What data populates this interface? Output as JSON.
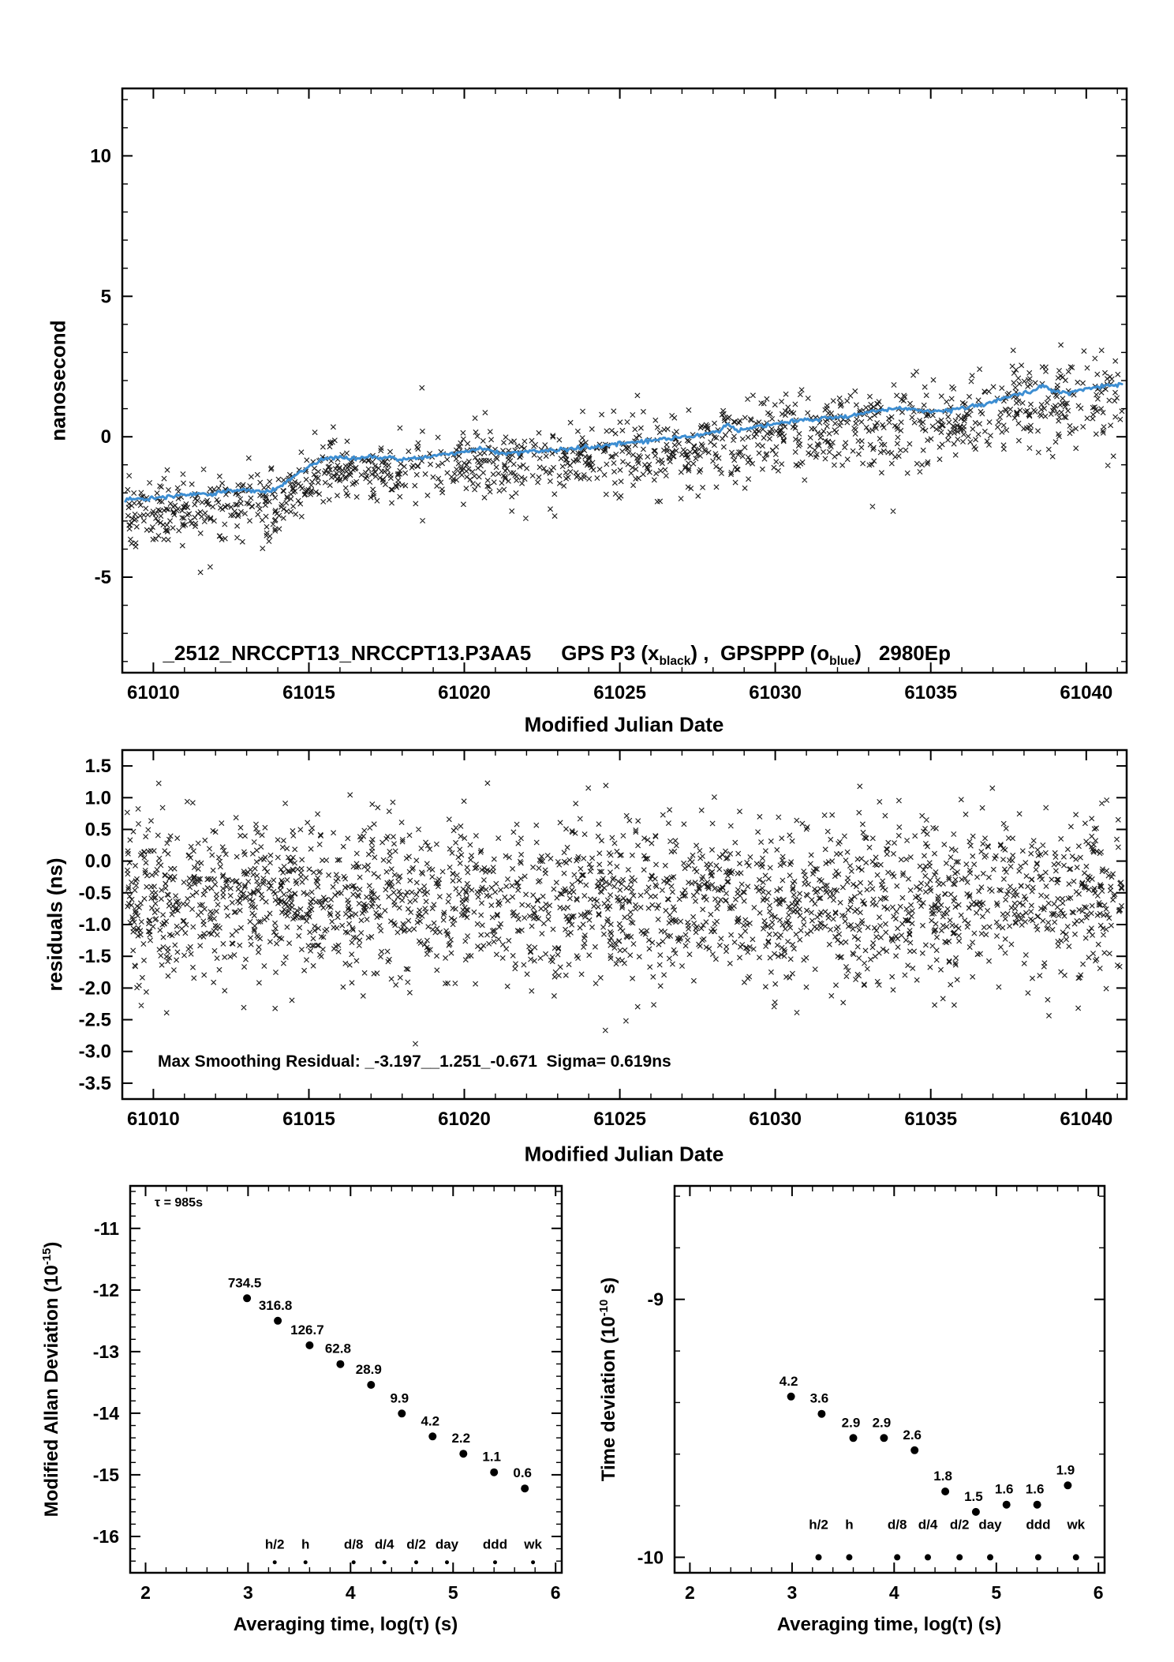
{
  "colors": {
    "black": "#1a1a1a",
    "blue": "#3d8ed2",
    "red": "#e00000"
  },
  "chart_data": [
    {
      "id": "phase-comparison",
      "type": "scatter",
      "xlabel": "Modified Julian Date",
      "ylabel": "nanosecond",
      "legend": {
        "run": "_2512_NRCCPT13_NRCCPT13.P3AA5",
        "gps_pre": "GPS P3 (x",
        "gps_sub": "black",
        "mid": ") ,  GPSPPP (o",
        "ppp_sub": "blue",
        "post": ")",
        "code": "2980Ep"
      },
      "xlim": [
        61009.0,
        61041.3
      ],
      "ylim": [
        -8.4,
        12.4
      ],
      "xticks": [
        61010,
        61015,
        61020,
        61025,
        61030,
        61035,
        61040
      ],
      "xtick_labels": [
        "61010",
        "61015",
        "61020",
        "61025",
        "61030",
        "61035",
        "61040"
      ],
      "yticks": [
        10,
        5,
        0,
        -5
      ],
      "ytick_labels": [
        "10",
        "5",
        "0",
        "-5"
      ],
      "series": [
        {
          "name": "GPS P3 (x black)",
          "marker": "x",
          "color_key": "black",
          "n": 1400,
          "seed": 20231,
          "mean_offset": -0.45,
          "sigma_base": 0.55,
          "sigma_slope": 0.008,
          "outlier_rate": 0.025,
          "clip": [
            -4.9,
            3.4
          ]
        },
        {
          "name": "GPSPPP (o blue)",
          "marker": "o",
          "color_key": "blue",
          "trend_anchors": [
            [
              61009.0,
              -2.25
            ],
            [
              61010,
              -2.2
            ],
            [
              61011,
              -2.05
            ],
            [
              61012,
              -2.0
            ],
            [
              61013,
              -1.9
            ],
            [
              61013.8,
              -1.95
            ],
            [
              61014.3,
              -1.6
            ],
            [
              61015,
              -1.05
            ],
            [
              61015.4,
              -0.8
            ],
            [
              61016,
              -0.72
            ],
            [
              61016.5,
              -0.78
            ],
            [
              61017,
              -0.7
            ],
            [
              61017.6,
              -0.78
            ],
            [
              61018.2,
              -0.8
            ],
            [
              61019,
              -0.68
            ],
            [
              61019.6,
              -0.58
            ],
            [
              61020,
              -0.52
            ],
            [
              61020.5,
              -0.42
            ],
            [
              61020.8,
              -0.5
            ],
            [
              61021.2,
              -0.62
            ],
            [
              61021.6,
              -0.58
            ],
            [
              61022,
              -0.52
            ],
            [
              61022.6,
              -0.5
            ],
            [
              61023.2,
              -0.45
            ],
            [
              61024,
              -0.38
            ],
            [
              61024.6,
              -0.3
            ],
            [
              61025.2,
              -0.22
            ],
            [
              61026,
              -0.12
            ],
            [
              61026.6,
              -0.05
            ],
            [
              61027.2,
              0.02
            ],
            [
              61027.8,
              0.12
            ],
            [
              61028.2,
              0.18
            ],
            [
              61028.45,
              0.5
            ],
            [
              61028.7,
              0.25
            ],
            [
              61029.2,
              0.3
            ],
            [
              61029.8,
              0.42
            ],
            [
              61030.4,
              0.52
            ],
            [
              61031,
              0.6
            ],
            [
              61031.6,
              0.66
            ],
            [
              61032.2,
              0.72
            ],
            [
              61032.8,
              0.82
            ],
            [
              61033.4,
              0.95
            ],
            [
              61034,
              1.02
            ],
            [
              61034.5,
              0.98
            ],
            [
              61035,
              0.9
            ],
            [
              61035.5,
              0.95
            ],
            [
              61036,
              1.02
            ],
            [
              61036.6,
              1.12
            ],
            [
              61037.2,
              1.32
            ],
            [
              61037.8,
              1.5
            ],
            [
              61038.3,
              1.62
            ],
            [
              61038.6,
              1.82
            ],
            [
              61039,
              1.62
            ],
            [
              61039.5,
              1.57
            ],
            [
              61040,
              1.7
            ],
            [
              61040.6,
              1.82
            ],
            [
              61041.2,
              1.88
            ]
          ]
        }
      ]
    },
    {
      "id": "residuals",
      "type": "scatter",
      "xlabel": "Modified Julian Date",
      "ylabel": "residuals (ns)",
      "annotation": "Max Smoothing Residual: _-3.197__1.251_-0.671  Sigma= 0.619ns",
      "stats": {
        "min": -3.197,
        "max": 1.251,
        "last": -0.671,
        "sigma_ns": 0.619
      },
      "xlim": [
        61009.0,
        61041.3
      ],
      "ylim": [
        -3.75,
        1.75
      ],
      "xticks": [
        61010,
        61015,
        61020,
        61025,
        61030,
        61035,
        61040
      ],
      "xtick_labels": [
        "61010",
        "61015",
        "61020",
        "61025",
        "61030",
        "61035",
        "61040"
      ],
      "yticks": [
        1.5,
        1.0,
        0.5,
        0.0,
        -0.5,
        -1.0,
        -1.5,
        -2.0,
        -2.5,
        -3.0,
        -3.5
      ],
      "ytick_labels": [
        "1.5",
        "1.0",
        "0.5",
        "0.0",
        "-0.5",
        "-1.0",
        "-1.5",
        "-2.0",
        "-2.5",
        "-3.0",
        "-3.5"
      ],
      "series": [
        {
          "name": "smoothing residuals",
          "marker": "x",
          "color_key": "black",
          "n": 2300,
          "seed": 8842,
          "mean": -0.62,
          "sigma": 0.63,
          "clip": [
            -3.197,
            1.251
          ]
        }
      ]
    },
    {
      "id": "mdev",
      "type": "scatter",
      "xlabel": "Averaging time, log(τ) (s)",
      "ylabel_parts": {
        "pre": "Modified Allan Deviation (10",
        "sup": "-15",
        "post": ")"
      },
      "tau_note": "τ = 985s",
      "scale_exp": -15,
      "xlim": [
        1.85,
        6.06
      ],
      "ylim": [
        -16.59,
        -10.31
      ],
      "xticks": [
        2,
        3,
        4,
        5,
        6
      ],
      "xtick_labels": [
        "2",
        "3",
        "4",
        "5",
        "6"
      ],
      "yticks": [
        -11,
        -12,
        -13,
        -14,
        -15,
        -16
      ],
      "ytick_labels": [
        "-11",
        "-12",
        "-13",
        "-14",
        "-15",
        "-16"
      ],
      "points": {
        "log_tau": [
          2.99,
          3.29,
          3.6,
          3.9,
          4.2,
          4.5,
          4.8,
          5.1,
          5.4,
          5.7
        ],
        "values": [
          734.5,
          316.8,
          126.7,
          62.8,
          28.9,
          9.9,
          4.2,
          2.2,
          1.1,
          0.6
        ]
      },
      "time_marks": [
        {
          "label": "h/2",
          "log_tau": 3.26
        },
        {
          "label": "h",
          "log_tau": 3.56
        },
        {
          "label": "d/8",
          "log_tau": 4.03
        },
        {
          "label": "d/4",
          "log_tau": 4.33
        },
        {
          "label": "d/2",
          "log_tau": 4.64
        },
        {
          "label": "day",
          "log_tau": 4.94
        },
        {
          "label": "ddd",
          "log_tau": 5.41
        },
        {
          "label": "wk",
          "log_tau": 5.78
        }
      ],
      "label_row_y": -16.2,
      "marker_row_y": -16.42,
      "marker_row_r": 2.5
    },
    {
      "id": "tdev",
      "type": "scatter",
      "xlabel": "Averaging time, log(τ) (s)",
      "ylabel_parts": {
        "pre": "Time deviation (10",
        "sup": "-10",
        "post": " s)"
      },
      "scale_exp": -10,
      "xlim": [
        1.85,
        6.06
      ],
      "ylim": [
        -10.06,
        -8.56
      ],
      "xticks": [
        2,
        3,
        4,
        5,
        6
      ],
      "xtick_labels": [
        "2",
        "3",
        "4",
        "5",
        "6"
      ],
      "yticks": [
        -9,
        -10
      ],
      "ytick_labels": [
        "-9",
        "-10"
      ],
      "points": {
        "log_tau": [
          2.99,
          3.29,
          3.6,
          3.9,
          4.2,
          4.5,
          4.8,
          5.1,
          5.4,
          5.7
        ],
        "values": [
          4.2,
          3.6,
          2.9,
          2.9,
          2.6,
          1.8,
          1.5,
          1.6,
          1.6,
          1.9
        ]
      },
      "time_marks": [
        {
          "label": "h/2",
          "log_tau": 3.26
        },
        {
          "label": "h",
          "log_tau": 3.56
        },
        {
          "label": "d/8",
          "log_tau": 4.03
        },
        {
          "label": "d/4",
          "log_tau": 4.33
        },
        {
          "label": "d/2",
          "log_tau": 4.64
        },
        {
          "label": "day",
          "log_tau": 4.94
        },
        {
          "label": "ddd",
          "log_tau": 5.41
        },
        {
          "label": "wk",
          "log_tau": 5.78
        }
      ],
      "label_row_y": -9.89,
      "marker_row_y": -10.0,
      "marker_row_r": 4
    }
  ]
}
